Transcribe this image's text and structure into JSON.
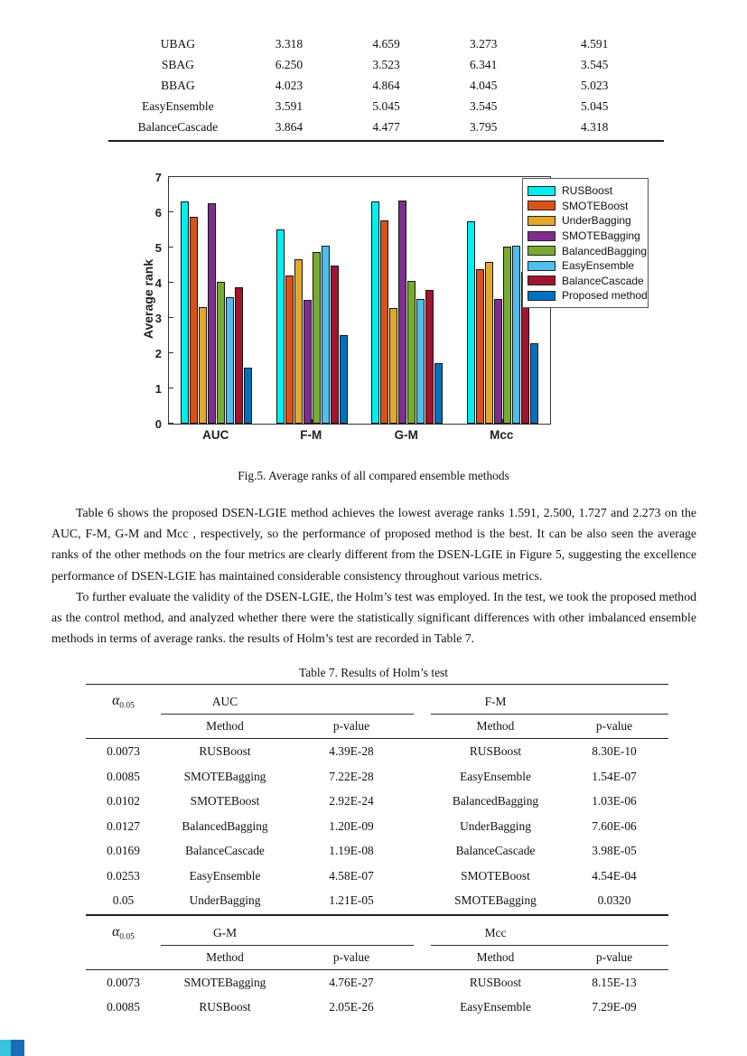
{
  "top_table": {
    "rows": [
      {
        "name": "UBAG",
        "values": [
          "3.318",
          "4.659",
          "3.273",
          "4.591"
        ]
      },
      {
        "name": "SBAG",
        "values": [
          "6.250",
          "3.523",
          "6.341",
          "3.545"
        ]
      },
      {
        "name": "BBAG",
        "values": [
          "4.023",
          "4.864",
          "4.045",
          "5.023"
        ]
      },
      {
        "name": "EasyEnsemble",
        "values": [
          "3.591",
          "5.045",
          "3.545",
          "5.045"
        ]
      },
      {
        "name": "BalanceCascade",
        "values": [
          "3.864",
          "4.477",
          "3.795",
          "4.318"
        ]
      }
    ]
  },
  "figure": {
    "caption": "Fig.5. Average ranks of all compared ensemble methods",
    "yticks": [
      0,
      1,
      2,
      3,
      4,
      5,
      6,
      7
    ]
  },
  "chart_data": {
    "type": "bar",
    "title": "",
    "xlabel": "",
    "ylabel": "Average rank",
    "ylim": [
      0,
      7
    ],
    "grid": false,
    "legend_position": "top-right",
    "categories": [
      "AUC",
      "F-M",
      "G-M",
      "Mcc"
    ],
    "series": [
      {
        "name": "RUSBoost",
        "color": "#00EFEF",
        "values": [
          6.3,
          5.5,
          6.3,
          5.75
        ]
      },
      {
        "name": "SMOTEBoost",
        "color": "#D95319",
        "values": [
          5.86,
          4.2,
          5.77,
          4.39
        ]
      },
      {
        "name": "UnderBagging",
        "color": "#E3A82B",
        "values": [
          3.318,
          4.659,
          3.273,
          4.591
        ]
      },
      {
        "name": "SMOTEBagging",
        "color": "#7E2F8E",
        "values": [
          6.25,
          3.523,
          6.341,
          3.545
        ]
      },
      {
        "name": "BalancedBagging",
        "color": "#77AC30",
        "values": [
          4.023,
          4.864,
          4.045,
          5.023
        ]
      },
      {
        "name": "EasyEnsemble",
        "color": "#4DBEEE",
        "values": [
          3.591,
          5.045,
          3.545,
          5.045
        ]
      },
      {
        "name": "BalanceCascade",
        "color": "#A2142F",
        "values": [
          3.864,
          4.477,
          3.795,
          4.318
        ]
      },
      {
        "name": "Proposed method",
        "color": "#0072BD",
        "values": [
          1.591,
          2.5,
          1.727,
          2.273
        ]
      }
    ]
  },
  "paragraphs": [
    "Table 6 shows the proposed DSEN-LGIE method achieves the lowest average ranks 1.591, 2.500, 1.727 and 2.273 on the AUC, F-M, G-M and Mcc , respectively, so the performance of proposed method is the best. It can be also seen the average ranks of the other methods on the four metrics are clearly different from the DSEN-LGIE in Figure 5, suggesting the excellence performance of DSEN-LGIE has maintained considerable consistency throughout various metrics.",
    "To further evaluate the validity of the DSEN-LGIE, the Holm’s test was employed. In the test, we took the proposed method as the control method, and analyzed whether there were the statistically significant differences with other imbalanced ensemble methods in terms of average ranks. the results of Holm’s test are recorded in Table 7."
  ],
  "table7": {
    "caption": "Table 7. Results of Holm’s test",
    "alpha_symbol": "α",
    "alpha_subscript": "0.05",
    "col_headers": [
      "Method",
      "p-value"
    ],
    "sections": [
      {
        "groups": [
          "AUC",
          "F-M"
        ],
        "rows": [
          {
            "alpha": "0.0073",
            "left": [
              "RUSBoost",
              "4.39E-28"
            ],
            "right": [
              "RUSBoost",
              "8.30E-10"
            ]
          },
          {
            "alpha": "0.0085",
            "left": [
              "SMOTEBagging",
              "7.22E-28"
            ],
            "right": [
              "EasyEnsemble",
              "1.54E-07"
            ]
          },
          {
            "alpha": "0.0102",
            "left": [
              "SMOTEBoost",
              "2.92E-24"
            ],
            "right": [
              "BalancedBagging",
              "1.03E-06"
            ]
          },
          {
            "alpha": "0.0127",
            "left": [
              "BalancedBagging",
              "1.20E-09"
            ],
            "right": [
              "UnderBagging",
              "7.60E-06"
            ]
          },
          {
            "alpha": "0.0169",
            "left": [
              "BalanceCascade",
              "1.19E-08"
            ],
            "right": [
              "BalanceCascade",
              "3.98E-05"
            ]
          },
          {
            "alpha": "0.0253",
            "left": [
              "EasyEnsemble",
              "4.58E-07"
            ],
            "right": [
              "SMOTEBoost",
              "4.54E-04"
            ]
          },
          {
            "alpha": "0.05",
            "left": [
              "UnderBagging",
              "1.21E-05"
            ],
            "right": [
              "SMOTEBagging",
              "0.0320"
            ]
          }
        ]
      },
      {
        "groups": [
          "G-M",
          "Mcc"
        ],
        "rows": [
          {
            "alpha": "0.0073",
            "left": [
              "SMOTEBagging",
              "4.76E-27"
            ],
            "right": [
              "RUSBoost",
              "8.15E-13"
            ]
          },
          {
            "alpha": "0.0085",
            "left": [
              "RUSBoost",
              "2.05E-26"
            ],
            "right": [
              "EasyEnsemble",
              "7.29E-09"
            ]
          }
        ]
      }
    ]
  },
  "corner_artifact": {
    "color_left": "#38C3DE",
    "color_right": "#1A6DB4"
  }
}
